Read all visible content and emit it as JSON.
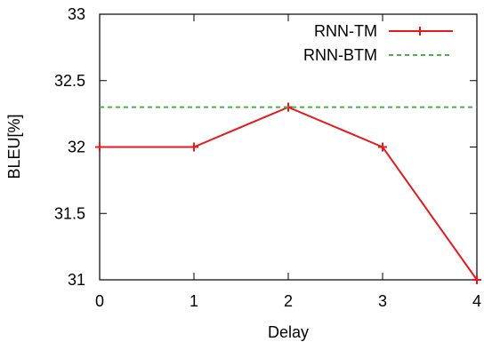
{
  "chart_data": {
    "type": "line",
    "title": "",
    "xlabel": "Delay",
    "ylabel": "BLEU[%]",
    "x": [
      0,
      1,
      2,
      3,
      4
    ],
    "xlim": [
      0,
      4
    ],
    "ylim": [
      31,
      33
    ],
    "x_ticks": [
      "0",
      "1",
      "2",
      "3",
      "4"
    ],
    "y_ticks": [
      "31",
      "31.5",
      "32",
      "32.5",
      "33"
    ],
    "grid": false,
    "legend_position": "top-right",
    "series": [
      {
        "name": "RNN-TM",
        "values": [
          32.0,
          32.0,
          32.3,
          32.0,
          31.0
        ],
        "color": "#e41a1c",
        "style": "solid",
        "marker": "plus"
      },
      {
        "name": "RNN-BTM",
        "values": [
          32.3,
          32.3,
          32.3,
          32.3,
          32.3
        ],
        "color": "#4daf4a",
        "style": "dashed",
        "marker": "none"
      }
    ]
  }
}
